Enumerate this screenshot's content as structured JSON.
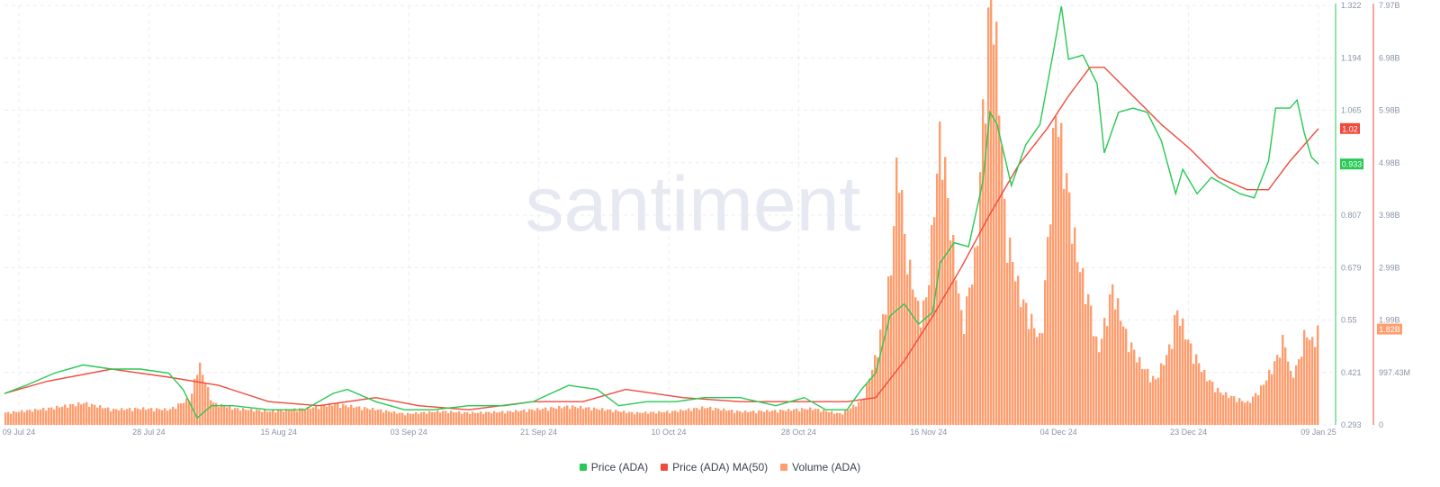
{
  "watermark": "santiment",
  "colors": {
    "price": "#26c953",
    "ma": "#f04a3c",
    "volume": "#ff9d6e",
    "grid": "#e9ecf2",
    "axis_price": "#26c953",
    "axis_volume": "#f04a3c"
  },
  "legend": [
    {
      "label": "Price (ADA)",
      "color": "#26c953"
    },
    {
      "label": "Price (ADA) MA(50)",
      "color": "#f04a3c"
    },
    {
      "label": "Volume (ADA)",
      "color": "#ff9d6e"
    }
  ],
  "chart_data": {
    "type": "line",
    "x_start": "2024-07-09",
    "x_end": "2025-01-09",
    "x_ticks": [
      "09 Jul 24",
      "28 Jul 24",
      "15 Aug 24",
      "03 Sep 24",
      "21 Sep 24",
      "10 Oct 24",
      "28 Oct 24",
      "16 Nov 24",
      "04 Dec 24",
      "23 Dec 24",
      "09 Jan 25"
    ],
    "price_axis": {
      "ticks": [
        "1.322",
        "1.194",
        "1.065",
        "0.936",
        "0.807",
        "0.679",
        "0.55",
        "0.421",
        "0.293"
      ],
      "min": 0.293,
      "max": 1.322
    },
    "volume_axis": {
      "ticks": [
        "7.97B",
        "6.98B",
        "5.98B",
        "4.98B",
        "3.98B",
        "2.99B",
        "1.99B",
        "997.43M",
        "0"
      ],
      "min": 0,
      "max": 7.97
    },
    "last_labels": {
      "price": "0.933",
      "ma": "1.02",
      "volume": "1.82B"
    },
    "series": [
      {
        "name": "Price (ADA)",
        "axis": "price",
        "points": [
          [
            "2024-07-09",
            0.37
          ],
          [
            "2024-07-12",
            0.39
          ],
          [
            "2024-07-16",
            0.42
          ],
          [
            "2024-07-20",
            0.44
          ],
          [
            "2024-07-24",
            0.43
          ],
          [
            "2024-07-28",
            0.43
          ],
          [
            "2024-08-01",
            0.42
          ],
          [
            "2024-08-03",
            0.38
          ],
          [
            "2024-08-05",
            0.31
          ],
          [
            "2024-08-07",
            0.34
          ],
          [
            "2024-08-10",
            0.34
          ],
          [
            "2024-08-15",
            0.33
          ],
          [
            "2024-08-20",
            0.33
          ],
          [
            "2024-08-24",
            0.37
          ],
          [
            "2024-08-26",
            0.38
          ],
          [
            "2024-08-30",
            0.35
          ],
          [
            "2024-09-03",
            0.33
          ],
          [
            "2024-09-07",
            0.33
          ],
          [
            "2024-09-12",
            0.34
          ],
          [
            "2024-09-17",
            0.34
          ],
          [
            "2024-09-21",
            0.35
          ],
          [
            "2024-09-26",
            0.39
          ],
          [
            "2024-09-30",
            0.38
          ],
          [
            "2024-10-03",
            0.34
          ],
          [
            "2024-10-07",
            0.35
          ],
          [
            "2024-10-11",
            0.35
          ],
          [
            "2024-10-15",
            0.36
          ],
          [
            "2024-10-20",
            0.36
          ],
          [
            "2024-10-25",
            0.34
          ],
          [
            "2024-10-29",
            0.36
          ],
          [
            "2024-11-01",
            0.33
          ],
          [
            "2024-11-04",
            0.33
          ],
          [
            "2024-11-06",
            0.38
          ],
          [
            "2024-11-08",
            0.42
          ],
          [
            "2024-11-10",
            0.56
          ],
          [
            "2024-11-12",
            0.59
          ],
          [
            "2024-11-14",
            0.54
          ],
          [
            "2024-11-16",
            0.57
          ],
          [
            "2024-11-17",
            0.69
          ],
          [
            "2024-11-19",
            0.74
          ],
          [
            "2024-11-21",
            0.73
          ],
          [
            "2024-11-23",
            0.89
          ],
          [
            "2024-11-24",
            1.06
          ],
          [
            "2024-11-25",
            1.03
          ],
          [
            "2024-11-27",
            0.88
          ],
          [
            "2024-11-29",
            0.98
          ],
          [
            "2024-12-01",
            1.03
          ],
          [
            "2024-12-03",
            1.22
          ],
          [
            "2024-12-04",
            1.32
          ],
          [
            "2024-12-05",
            1.19
          ],
          [
            "2024-12-07",
            1.2
          ],
          [
            "2024-12-09",
            1.13
          ],
          [
            "2024-12-10",
            0.96
          ],
          [
            "2024-12-12",
            1.06
          ],
          [
            "2024-12-14",
            1.07
          ],
          [
            "2024-12-16",
            1.06
          ],
          [
            "2024-12-18",
            0.99
          ],
          [
            "2024-12-20",
            0.86
          ],
          [
            "2024-12-21",
            0.92
          ],
          [
            "2024-12-23",
            0.86
          ],
          [
            "2024-12-25",
            0.9
          ],
          [
            "2024-12-27",
            0.88
          ],
          [
            "2024-12-29",
            0.86
          ],
          [
            "2024-12-31",
            0.85
          ],
          [
            "2025-01-02",
            0.94
          ],
          [
            "2025-01-03",
            1.07
          ],
          [
            "2025-01-05",
            1.07
          ],
          [
            "2025-01-06",
            1.09
          ],
          [
            "2025-01-07",
            1.01
          ],
          [
            "2025-01-08",
            0.95
          ],
          [
            "2025-01-09",
            0.933
          ]
        ]
      },
      {
        "name": "Price (ADA) MA(50)",
        "axis": "price",
        "points": [
          [
            "2024-07-09",
            0.37
          ],
          [
            "2024-07-15",
            0.4
          ],
          [
            "2024-07-24",
            0.43
          ],
          [
            "2024-08-01",
            0.41
          ],
          [
            "2024-08-08",
            0.39
          ],
          [
            "2024-08-15",
            0.35
          ],
          [
            "2024-08-22",
            0.34
          ],
          [
            "2024-08-30",
            0.36
          ],
          [
            "2024-09-05",
            0.34
          ],
          [
            "2024-09-12",
            0.33
          ],
          [
            "2024-09-21",
            0.35
          ],
          [
            "2024-09-28",
            0.35
          ],
          [
            "2024-10-04",
            0.38
          ],
          [
            "2024-10-12",
            0.36
          ],
          [
            "2024-10-20",
            0.35
          ],
          [
            "2024-10-28",
            0.35
          ],
          [
            "2024-11-04",
            0.35
          ],
          [
            "2024-11-08",
            0.36
          ],
          [
            "2024-11-12",
            0.45
          ],
          [
            "2024-11-16",
            0.56
          ],
          [
            "2024-11-20",
            0.68
          ],
          [
            "2024-11-24",
            0.81
          ],
          [
            "2024-11-28",
            0.93
          ],
          [
            "2024-12-02",
            1.02
          ],
          [
            "2024-12-05",
            1.1
          ],
          [
            "2024-12-08",
            1.17
          ],
          [
            "2024-12-10",
            1.17
          ],
          [
            "2024-12-14",
            1.1
          ],
          [
            "2024-12-18",
            1.03
          ],
          [
            "2024-12-22",
            0.97
          ],
          [
            "2024-12-26",
            0.9
          ],
          [
            "2024-12-30",
            0.87
          ],
          [
            "2025-01-02",
            0.87
          ],
          [
            "2025-01-05",
            0.94
          ],
          [
            "2025-01-09",
            1.02
          ]
        ]
      },
      {
        "name": "Volume (ADA)",
        "axis": "volume",
        "points": [
          [
            "2024-07-09",
            0.22
          ],
          [
            "2024-07-15",
            0.3
          ],
          [
            "2024-07-20",
            0.4
          ],
          [
            "2024-07-24",
            0.28
          ],
          [
            "2024-07-28",
            0.3
          ],
          [
            "2024-08-01",
            0.28
          ],
          [
            "2024-08-04",
            0.5
          ],
          [
            "2024-08-05",
            1.15
          ],
          [
            "2024-08-07",
            0.4
          ],
          [
            "2024-08-10",
            0.3
          ],
          [
            "2024-08-15",
            0.25
          ],
          [
            "2024-08-20",
            0.3
          ],
          [
            "2024-08-24",
            0.38
          ],
          [
            "2024-08-30",
            0.28
          ],
          [
            "2024-09-03",
            0.2
          ],
          [
            "2024-09-08",
            0.25
          ],
          [
            "2024-09-12",
            0.22
          ],
          [
            "2024-09-17",
            0.24
          ],
          [
            "2024-09-21",
            0.28
          ],
          [
            "2024-09-26",
            0.34
          ],
          [
            "2024-10-01",
            0.28
          ],
          [
            "2024-10-05",
            0.22
          ],
          [
            "2024-10-10",
            0.24
          ],
          [
            "2024-10-15",
            0.32
          ],
          [
            "2024-10-20",
            0.24
          ],
          [
            "2024-10-25",
            0.26
          ],
          [
            "2024-10-30",
            0.3
          ],
          [
            "2024-11-03",
            0.2
          ],
          [
            "2024-11-06",
            0.45
          ],
          [
            "2024-11-08",
            1.3
          ],
          [
            "2024-11-10",
            2.8
          ],
          [
            "2024-11-11",
            5.1
          ],
          [
            "2024-11-12",
            3.2
          ],
          [
            "2024-11-14",
            2.0
          ],
          [
            "2024-11-15",
            2.3
          ],
          [
            "2024-11-17",
            5.5
          ],
          [
            "2024-11-18",
            4.0
          ],
          [
            "2024-11-20",
            1.8
          ],
          [
            "2024-11-22",
            3.2
          ],
          [
            "2024-11-23",
            6.0
          ],
          [
            "2024-11-24",
            7.9
          ],
          [
            "2024-11-25",
            6.5
          ],
          [
            "2024-11-26",
            3.6
          ],
          [
            "2024-11-28",
            2.4
          ],
          [
            "2024-11-30",
            1.8
          ],
          [
            "2024-12-01",
            1.5
          ],
          [
            "2024-12-02",
            3.4
          ],
          [
            "2024-12-03",
            5.8
          ],
          [
            "2024-12-04",
            5.0
          ],
          [
            "2024-12-06",
            3.1
          ],
          [
            "2024-12-08",
            2.1
          ],
          [
            "2024-12-09",
            1.3
          ],
          [
            "2024-12-11",
            2.5
          ],
          [
            "2024-12-13",
            1.6
          ],
          [
            "2024-12-15",
            1.1
          ],
          [
            "2024-12-17",
            0.8
          ],
          [
            "2024-12-19",
            1.4
          ],
          [
            "2024-12-20",
            2.1
          ],
          [
            "2024-12-22",
            1.4
          ],
          [
            "2024-12-24",
            0.9
          ],
          [
            "2024-12-26",
            0.6
          ],
          [
            "2024-12-28",
            0.5
          ],
          [
            "2024-12-30",
            0.4
          ],
          [
            "2025-01-01",
            0.7
          ],
          [
            "2025-01-03",
            1.2
          ],
          [
            "2025-01-04",
            1.6
          ],
          [
            "2025-01-05",
            0.9
          ],
          [
            "2025-01-06",
            1.1
          ],
          [
            "2025-01-07",
            1.7
          ],
          [
            "2025-01-08",
            1.5
          ],
          [
            "2025-01-09",
            1.82
          ]
        ]
      }
    ]
  }
}
